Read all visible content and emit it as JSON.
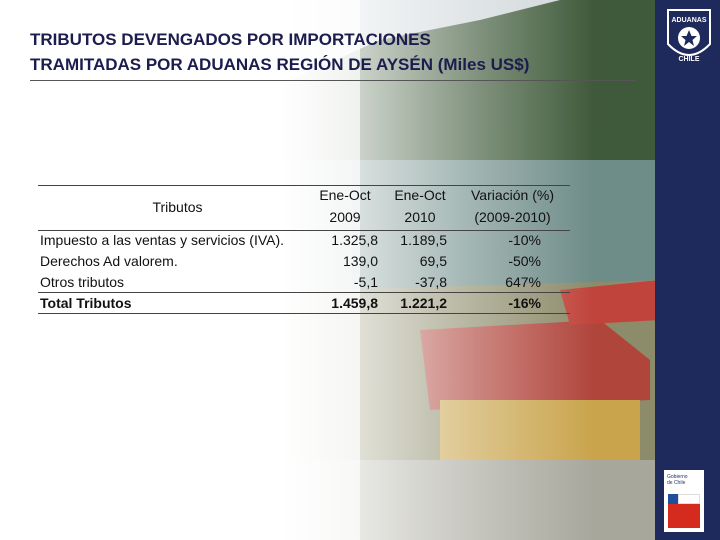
{
  "header": {
    "title_lines": [
      "TRIBUTOS DEVENGADOS POR IMPORTACIONES",
      "TRAMITADAS POR ADUANAS REGIÓN DE AYSÉN (Miles US$)"
    ]
  },
  "logo": {
    "top": "ADUANAS",
    "bottom": "CHILE"
  },
  "gov_logo": {
    "lines": [
      "Gobierno",
      "de Chile"
    ]
  },
  "table": {
    "header": [
      [
        "Tributos"
      ],
      [
        "Ene-Oct",
        "2009"
      ],
      [
        "Ene-Oct",
        "2010"
      ],
      [
        "Variación (%)",
        "(2009-2010)"
      ]
    ],
    "rows": [
      [
        "Impuesto a las ventas y servicios (IVA).",
        "1.325,8",
        "1.189,5",
        "-10%"
      ],
      [
        "Derechos Ad valorem.",
        "139,0",
        "69,5",
        "-50%"
      ],
      [
        "Otros tributos",
        "-5,1",
        "-37,8",
        "647%"
      ],
      [
        "Total Tributos",
        "1.459,8",
        "1.221,2",
        "-16%"
      ]
    ]
  }
}
